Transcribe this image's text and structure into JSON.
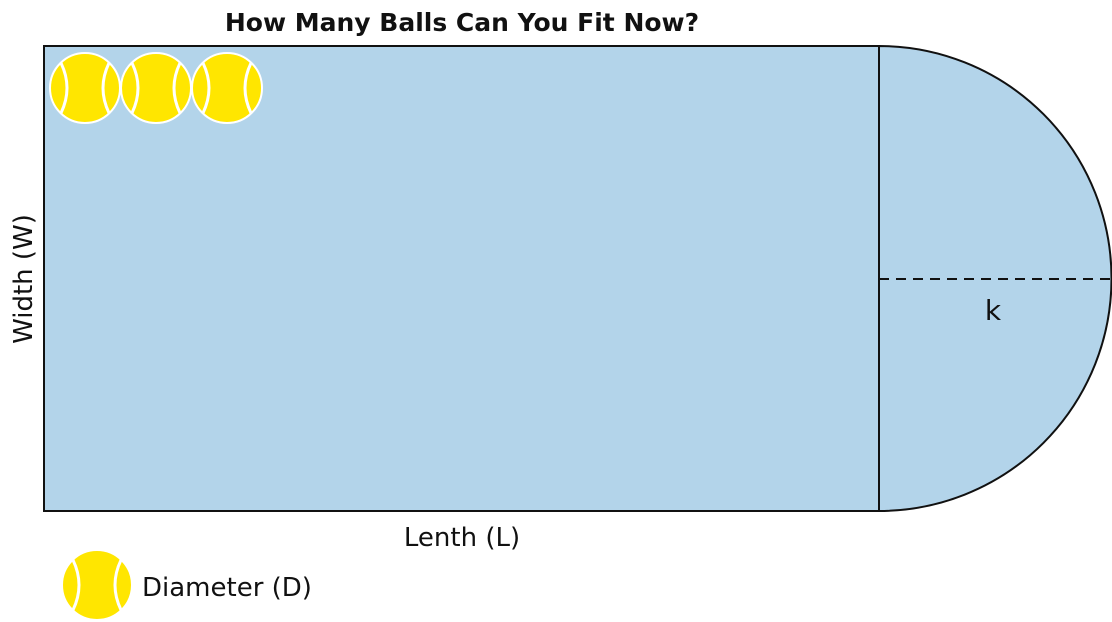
{
  "diagram": {
    "title": "How Many Balls Can You Fit Now?",
    "width_label": "Width (W)",
    "length_label": "Lenth (L)",
    "radius_label": "k",
    "legend_label": "Diameter (D)",
    "ball_count": 3,
    "colors": {
      "field_fill": "#b3d4ea",
      "outline": "#111111",
      "ball_fill": "#ffe600",
      "ball_seam": "#ffffff"
    },
    "icons": [
      "tennis-ball-icon"
    ]
  }
}
